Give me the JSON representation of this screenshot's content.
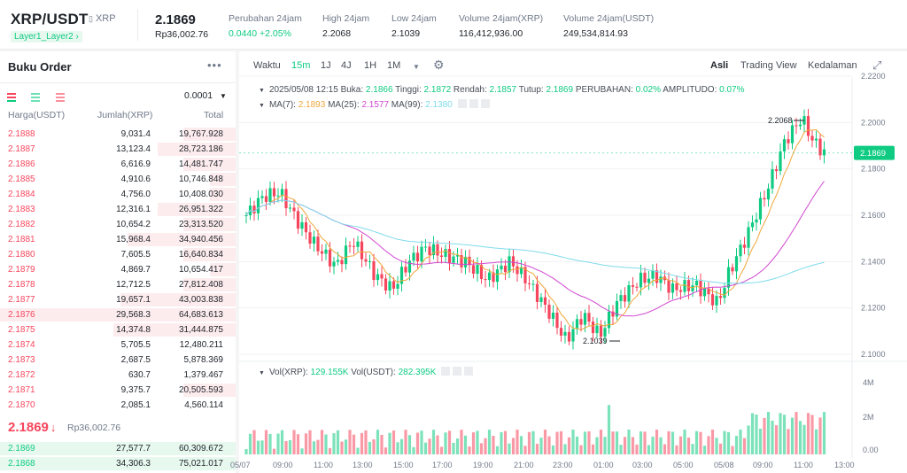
{
  "header": {
    "pair": "XRP/USDT",
    "base_name": "XRP",
    "tag": "Layer1_Layer2",
    "last_price": "2.1869",
    "last_price_fiat": "Rp36,002.76",
    "stats": [
      {
        "label": "Perubahan 24jam",
        "value": "0.0440 +2.05%"
      },
      {
        "label": "High 24jam",
        "value": "2.2068"
      },
      {
        "label": "Low 24jam",
        "value": "2.1039"
      },
      {
        "label": "Volume 24jam(XRP)",
        "value": "116,412,936.00"
      },
      {
        "label": "Volume 24jam(USDT)",
        "value": "249,534,814.93"
      }
    ]
  },
  "orderbook": {
    "title": "Buku Order",
    "tick_size": "0.0001",
    "col_price": "Harga(USDT)",
    "col_amount": "Jumlah(XRP)",
    "col_total": "Total",
    "asks": [
      {
        "price": "2.1888",
        "amount": "9,031.4",
        "total": "19,767.928",
        "depth": 0.22
      },
      {
        "price": "2.1887",
        "amount": "13,123.4",
        "total": "28,723.186",
        "depth": 0.33
      },
      {
        "price": "2.1886",
        "amount": "6,616.9",
        "total": "14,481.747",
        "depth": 0.22
      },
      {
        "price": "2.1885",
        "amount": "4,910.6",
        "total": "10,746.848",
        "depth": 0.11
      },
      {
        "price": "2.1884",
        "amount": "4,756.0",
        "total": "10,408.030",
        "depth": 0.11
      },
      {
        "price": "2.1883",
        "amount": "12,316.1",
        "total": "26,951.322",
        "depth": 0.33
      },
      {
        "price": "2.1882",
        "amount": "10,654.2",
        "total": "23,313.520",
        "depth": 0.22
      },
      {
        "price": "2.1881",
        "amount": "15,968.4",
        "total": "34,940.456",
        "depth": 0.46
      },
      {
        "price": "2.1880",
        "amount": "7,605.5",
        "total": "16,640.834",
        "depth": 0.22
      },
      {
        "price": "2.1879",
        "amount": "4,869.7",
        "total": "10,654.417",
        "depth": 0.11
      },
      {
        "price": "2.1878",
        "amount": "12,712.5",
        "total": "27,812.408",
        "depth": 0.22
      },
      {
        "price": "2.1877",
        "amount": "19,657.1",
        "total": "43,003.838",
        "depth": 0.49
      },
      {
        "price": "2.1876",
        "amount": "29,568.3",
        "total": "64,683.613",
        "depth": 1.0
      },
      {
        "price": "2.1875",
        "amount": "14,374.8",
        "total": "31,444.875",
        "depth": 0.52
      },
      {
        "price": "2.1874",
        "amount": "5,705.5",
        "total": "12,480.211",
        "depth": 0.0
      },
      {
        "price": "2.1873",
        "amount": "2,687.5",
        "total": "5,878.369",
        "depth": 0.0
      },
      {
        "price": "2.1872",
        "amount": "630.7",
        "total": "1,379.467",
        "depth": 0.0
      },
      {
        "price": "2.1871",
        "amount": "9,375.7",
        "total": "20,505.593",
        "depth": 0.22
      },
      {
        "price": "2.1870",
        "amount": "2,085.1",
        "total": "4,560.114",
        "depth": 0.0
      }
    ],
    "current_price": "2.1869",
    "current_arrow": "↓",
    "current_fiat": "Rp36,002.76",
    "bids": [
      {
        "price": "2.1869",
        "amount": "27,577.7",
        "total": "60,309.672",
        "depth": 1.0
      },
      {
        "price": "2.1868",
        "amount": "34,306.3",
        "total": "75,021.017",
        "depth": 1.0
      }
    ]
  },
  "chart_toolbar": {
    "time_label": "Waktu",
    "intervals": [
      "15m",
      "1J",
      "4J",
      "1H",
      "1M"
    ],
    "active_interval": "15m",
    "views": [
      "Asli",
      "Trading View",
      "Kedalaman"
    ],
    "active_view": "Asli"
  },
  "chart_legend": {
    "ohlc_parts": [
      {
        "text": "2025/05/08 12:15 Buka: ",
        "color": "#474d57"
      },
      {
        "text": "2.1866",
        "color": "#0ecb81"
      },
      {
        "text": " Tinggi: ",
        "color": "#474d57"
      },
      {
        "text": "2.1872",
        "color": "#0ecb81"
      },
      {
        "text": " Rendah: ",
        "color": "#474d57"
      },
      {
        "text": "2.1857",
        "color": "#0ecb81"
      },
      {
        "text": " Tutup: ",
        "color": "#474d57"
      },
      {
        "text": "2.1869",
        "color": "#0ecb81"
      },
      {
        "text": " PERUBAHAN: ",
        "color": "#474d57"
      },
      {
        "text": "0.02%",
        "color": "#0ecb81"
      },
      {
        "text": " AMPLITUDO: ",
        "color": "#474d57"
      },
      {
        "text": "0.07%",
        "color": "#0ecb81"
      }
    ],
    "ma_parts": [
      {
        "text": "MA(7): ",
        "color": "#474d57"
      },
      {
        "text": "2.1893",
        "color": "#f0a73a"
      },
      {
        "text": " MA(25): ",
        "color": "#474d57"
      },
      {
        "text": "2.1577",
        "color": "#d048d0"
      },
      {
        "text": " MA(99): ",
        "color": "#474d57"
      },
      {
        "text": "2.1380",
        "color": "#7fdbeb"
      }
    ],
    "vol_parts": [
      {
        "text": "Vol(XRP): ",
        "color": "#474d57"
      },
      {
        "text": "129.155K",
        "color": "#0ecb81"
      },
      {
        "text": " Vol(USDT): ",
        "color": "#474d57"
      },
      {
        "text": "282.395K",
        "color": "#0ecb81"
      }
    ]
  },
  "chart_data": {
    "type": "candlestick",
    "interval": "15m",
    "ylim": [
      2.1,
      2.22
    ],
    "y_ticks": [
      "2.2200",
      "2.2000",
      "2.1800",
      "2.1600",
      "2.1400",
      "2.1200",
      "2.1000"
    ],
    "x_ticks": [
      "05/07",
      "09:00",
      "11:00",
      "13:00",
      "15:00",
      "17:00",
      "19:00",
      "21:00",
      "23:00",
      "01:00",
      "03:00",
      "05:00",
      "05/08",
      "09:00",
      "11:00",
      "13:00"
    ],
    "volume_ticks": [
      "4M",
      "2M",
      "0.00"
    ],
    "current_price_label": "2.1869",
    "high_label": "2.2068",
    "low_label": "2.1039"
  },
  "colors": {
    "up": "#0ecb81",
    "down": "#f6465d",
    "ma7": "#f0a73a",
    "ma25": "#d048d0",
    "ma99": "#7fdbeb"
  }
}
